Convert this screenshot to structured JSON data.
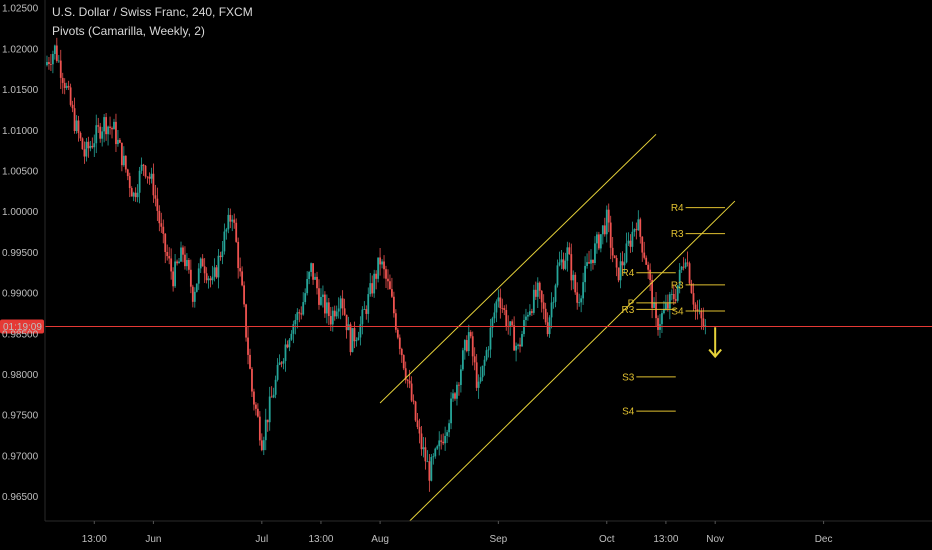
{
  "header": {
    "title": "U.S. Dollar / Swiss Franc, 240, FXCM",
    "indicator": "Pivots (Camarilla, Weekly, 2)"
  },
  "colors": {
    "background": "#000000",
    "candle_up": "#26a69a",
    "candle_down": "#ef5350",
    "trendline": "#e6d23a",
    "pivot": "#e0c030",
    "price_line": "#e53935",
    "price_label_bg": "#e53935",
    "axis_text": "#bfbfbf"
  },
  "chart_data": {
    "type": "candlestick",
    "symbol": "USDCHF",
    "timeframe": "240",
    "ylim": [
      0.962,
      1.026
    ],
    "y_ticks": [
      {
        "label": "1.02500",
        "value": 1.025
      },
      {
        "label": "1.02000",
        "value": 1.02
      },
      {
        "label": "1.01500",
        "value": 1.015
      },
      {
        "label": "1.01000",
        "value": 1.01
      },
      {
        "label": "1.00500",
        "value": 1.005
      },
      {
        "label": "1.00000",
        "value": 1.0
      },
      {
        "label": "0.99500",
        "value": 0.995
      },
      {
        "label": "0.99000",
        "value": 0.99
      },
      {
        "label": "0.98500",
        "value": 0.985
      },
      {
        "label": "0.98000",
        "value": 0.98
      },
      {
        "label": "0.97500",
        "value": 0.975
      },
      {
        "label": "0.97000",
        "value": 0.97
      },
      {
        "label": "0.96500",
        "value": 0.965
      }
    ],
    "x_ticks": [
      {
        "label": "13:00",
        "index": 5
      },
      {
        "label": "Jun",
        "index": 11
      },
      {
        "label": "Jul",
        "index": 22
      },
      {
        "label": "13:00",
        "index": 28
      },
      {
        "label": "Aug",
        "index": 34
      },
      {
        "label": "Sep",
        "index": 46
      },
      {
        "label": "Oct",
        "index": 57
      },
      {
        "label": "13:00",
        "index": 63
      },
      {
        "label": "Nov",
        "index": 68
      },
      {
        "label": "Dec",
        "index": 79
      }
    ],
    "index_range": [
      0,
      90
    ],
    "path": [
      [
        0,
        1.018
      ],
      [
        1,
        1.02
      ],
      [
        2,
        1.016
      ],
      [
        3,
        1.011
      ],
      [
        4,
        1.007
      ],
      [
        5,
        1.009
      ],
      [
        6,
        1.011
      ],
      [
        7,
        1.01
      ],
      [
        8,
        1.006
      ],
      [
        9,
        1.002
      ],
      [
        10,
        1.006
      ],
      [
        11,
        1.003
      ],
      [
        12,
        0.996
      ],
      [
        13,
        0.992
      ],
      [
        14,
        0.995
      ],
      [
        15,
        0.99
      ],
      [
        16,
        0.994
      ],
      [
        17,
        0.991
      ],
      [
        18,
        0.996
      ],
      [
        19,
        1.0
      ],
      [
        20,
        0.99
      ],
      [
        21,
        0.978
      ],
      [
        22,
        0.972
      ],
      [
        23,
        0.977
      ],
      [
        24,
        0.982
      ],
      [
        25,
        0.986
      ],
      [
        26,
        0.988
      ],
      [
        27,
        0.993
      ],
      [
        28,
        0.989
      ],
      [
        29,
        0.987
      ],
      [
        30,
        0.99
      ],
      [
        31,
        0.984
      ],
      [
        32,
        0.986
      ],
      [
        33,
        0.99
      ],
      [
        34,
        0.994
      ],
      [
        35,
        0.99
      ],
      [
        36,
        0.984
      ],
      [
        37,
        0.978
      ],
      [
        38,
        0.972
      ],
      [
        39,
        0.968
      ],
      [
        40,
        0.971
      ],
      [
        41,
        0.975
      ],
      [
        42,
        0.98
      ],
      [
        43,
        0.985
      ],
      [
        44,
        0.978
      ],
      [
        45,
        0.984
      ],
      [
        46,
        0.99
      ],
      [
        47,
        0.986
      ],
      [
        48,
        0.983
      ],
      [
        49,
        0.988
      ],
      [
        50,
        0.99
      ],
      [
        51,
        0.986
      ],
      [
        52,
        0.993
      ],
      [
        53,
        0.995
      ],
      [
        54,
        0.989
      ],
      [
        55,
        0.993
      ],
      [
        56,
        0.996
      ],
      [
        57,
        0.999
      ],
      [
        58,
        0.992
      ],
      [
        59,
        0.995
      ],
      [
        60,
        0.999
      ],
      [
        61,
        0.994
      ],
      [
        62,
        0.986
      ],
      [
        63,
        0.988
      ],
      [
        64,
        0.99
      ],
      [
        65,
        0.995
      ],
      [
        66,
        0.988
      ],
      [
        67,
        0.9855
      ]
    ],
    "last_index": 67,
    "current_price": 0.9859,
    "price_label": "01:19:09",
    "trendlines": [
      {
        "name": "channel-upper",
        "from": [
          34,
          0.9765
        ],
        "to": [
          62,
          1.0095
        ]
      },
      {
        "name": "channel-lower",
        "from": [
          37,
          0.962
        ],
        "to": [
          70,
          1.0013
        ]
      }
    ],
    "pivots": [
      {
        "label": "R4",
        "value": 1.0005,
        "from": 65,
        "to": 69
      },
      {
        "label": "R3",
        "value": 0.9973,
        "from": 65,
        "to": 69
      },
      {
        "label": "R4",
        "value": 0.9925,
        "from": 60,
        "to": 64
      },
      {
        "label": "R3",
        "value": 0.991,
        "from": 65,
        "to": 69
      },
      {
        "label": "P",
        "value": 0.9888,
        "from": 60,
        "to": 64
      },
      {
        "label": "R3",
        "value": 0.988,
        "from": 60,
        "to": 64
      },
      {
        "label": "S4",
        "value": 0.9878,
        "from": 65,
        "to": 69
      },
      {
        "label": "S3",
        "value": 0.9797,
        "from": 60,
        "to": 64
      },
      {
        "label": "S4",
        "value": 0.9755,
        "from": 60,
        "to": 64
      }
    ],
    "forecast_arrow": {
      "from": [
        68,
        0.9858
      ],
      "to": [
        68,
        0.9822
      ]
    }
  }
}
